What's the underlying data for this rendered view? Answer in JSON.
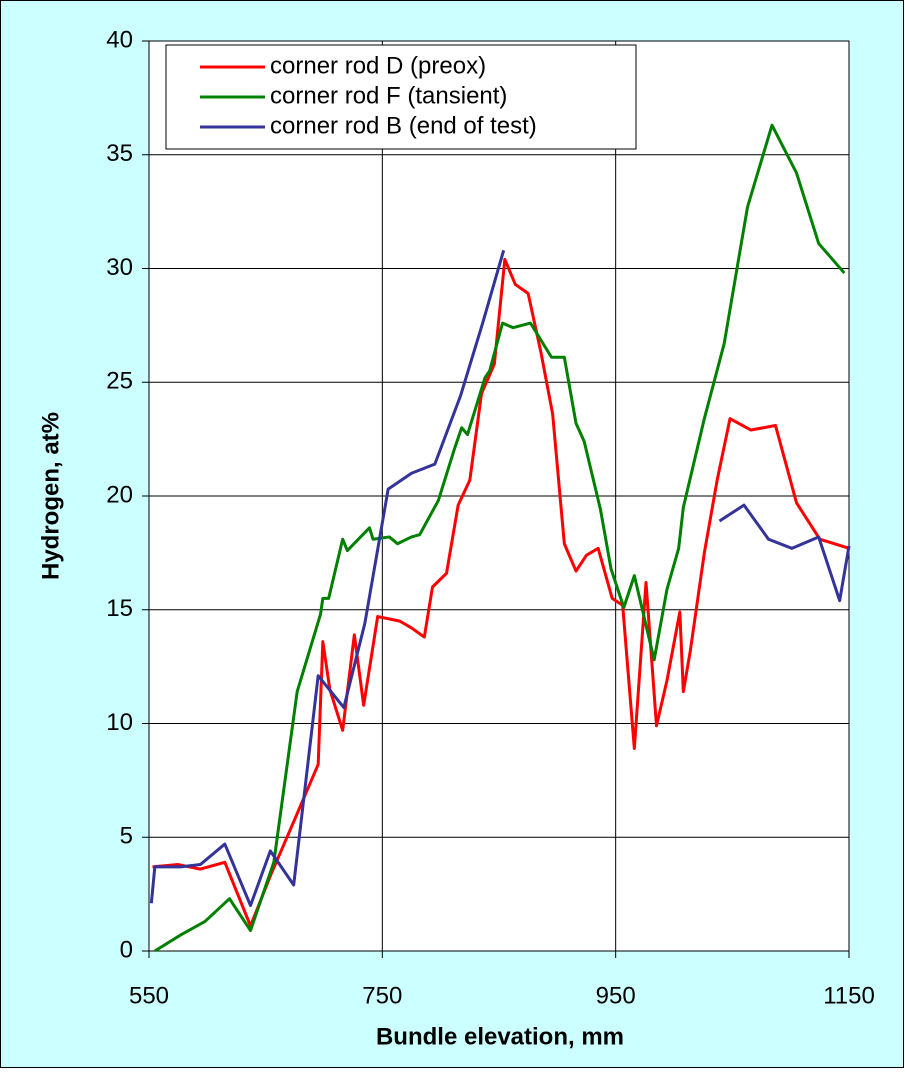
{
  "chart_data": {
    "type": "line",
    "xlabel": "Bundle elevation, mm",
    "ylabel": "Hydrogen, at%",
    "xlim": [
      550,
      1150
    ],
    "xticks": [
      550,
      750,
      950,
      1150
    ],
    "ylim": [
      0,
      40
    ],
    "yticks": [
      0,
      5,
      10,
      15,
      20,
      25,
      30,
      35,
      40
    ],
    "grid": true,
    "legend": "upper left",
    "series": [
      {
        "name": "corner rod D (preox)",
        "color": "#ff0000",
        "x": [
          553,
          575,
          594,
          615,
          637,
          654,
          675,
          695,
          699,
          705,
          716,
          726,
          734,
          746,
          765,
          775,
          786,
          793,
          805,
          815,
          825,
          835,
          846,
          855,
          864,
          875,
          886,
          896,
          906,
          916,
          925,
          935,
          947,
          956,
          966,
          976,
          985,
          994,
          1005,
          1008,
          1014,
          1026,
          1037,
          1048,
          1066,
          1087,
          1105,
          1125,
          1150
        ],
        "values": [
          3.7,
          3.8,
          3.6,
          3.9,
          1.1,
          3.3,
          5.8,
          8.2,
          13.6,
          11.5,
          9.7,
          13.9,
          10.8,
          14.7,
          14.5,
          14.2,
          13.8,
          16.0,
          16.6,
          19.6,
          20.7,
          24.5,
          25.8,
          30.4,
          29.3,
          28.9,
          26.3,
          23.6,
          17.9,
          16.7,
          17.4,
          17.7,
          15.5,
          15.2,
          8.9,
          16.2,
          9.9,
          11.9,
          14.9,
          11.4,
          13.2,
          17.5,
          20.7,
          23.4,
          22.9,
          23.1,
          19.7,
          18.1,
          17.7
        ]
      },
      {
        "name": "corner rod F (tansient)",
        "color": "#008000",
        "x": [
          555,
          577,
          598,
          619,
          637,
          657,
          677,
          697,
          699,
          704,
          716,
          720,
          739,
          742,
          756,
          763,
          775,
          782,
          798,
          812,
          818,
          823,
          838,
          842,
          853,
          862,
          877,
          895,
          906,
          916,
          923,
          937,
          946,
          957,
          966,
          983,
          994,
          1004,
          1008,
          1026,
          1043,
          1063,
          1084,
          1105,
          1124,
          1146
        ],
        "values": [
          0,
          0.7,
          1.3,
          2.3,
          0.9,
          3.9,
          11.4,
          14.8,
          15.5,
          15.5,
          18.1,
          17.6,
          18.6,
          18.1,
          18.2,
          17.9,
          18.2,
          18.3,
          19.8,
          22.1,
          23.0,
          22.7,
          25.2,
          25.5,
          27.6,
          27.4,
          27.6,
          26.1,
          26.1,
          23.2,
          22.4,
          19.4,
          16.8,
          15.1,
          16.5,
          12.8,
          15.9,
          17.7,
          19.5,
          23.4,
          26.7,
          32.7,
          36.3,
          34.2,
          31.1,
          29.8
        ]
      },
      {
        "name": "corner rod B (end of test)",
        "color": "#333399",
        "x": [
          552,
          555,
          577,
          594,
          615,
          637,
          654,
          674,
          695,
          717,
          735,
          755,
          775,
          795,
          817,
          836,
          854,
          null,
          1039,
          1060,
          1081,
          1101,
          1124,
          1142,
          1150
        ],
        "values": [
          2.1,
          3.7,
          3.7,
          3.8,
          4.7,
          2.0,
          4.4,
          2.9,
          12.1,
          10.7,
          14.4,
          20.3,
          21.0,
          21.4,
          24.4,
          27.6,
          30.8,
          null,
          18.9,
          19.6,
          18.1,
          17.7,
          18.2,
          15.4,
          17.8
        ]
      }
    ]
  }
}
